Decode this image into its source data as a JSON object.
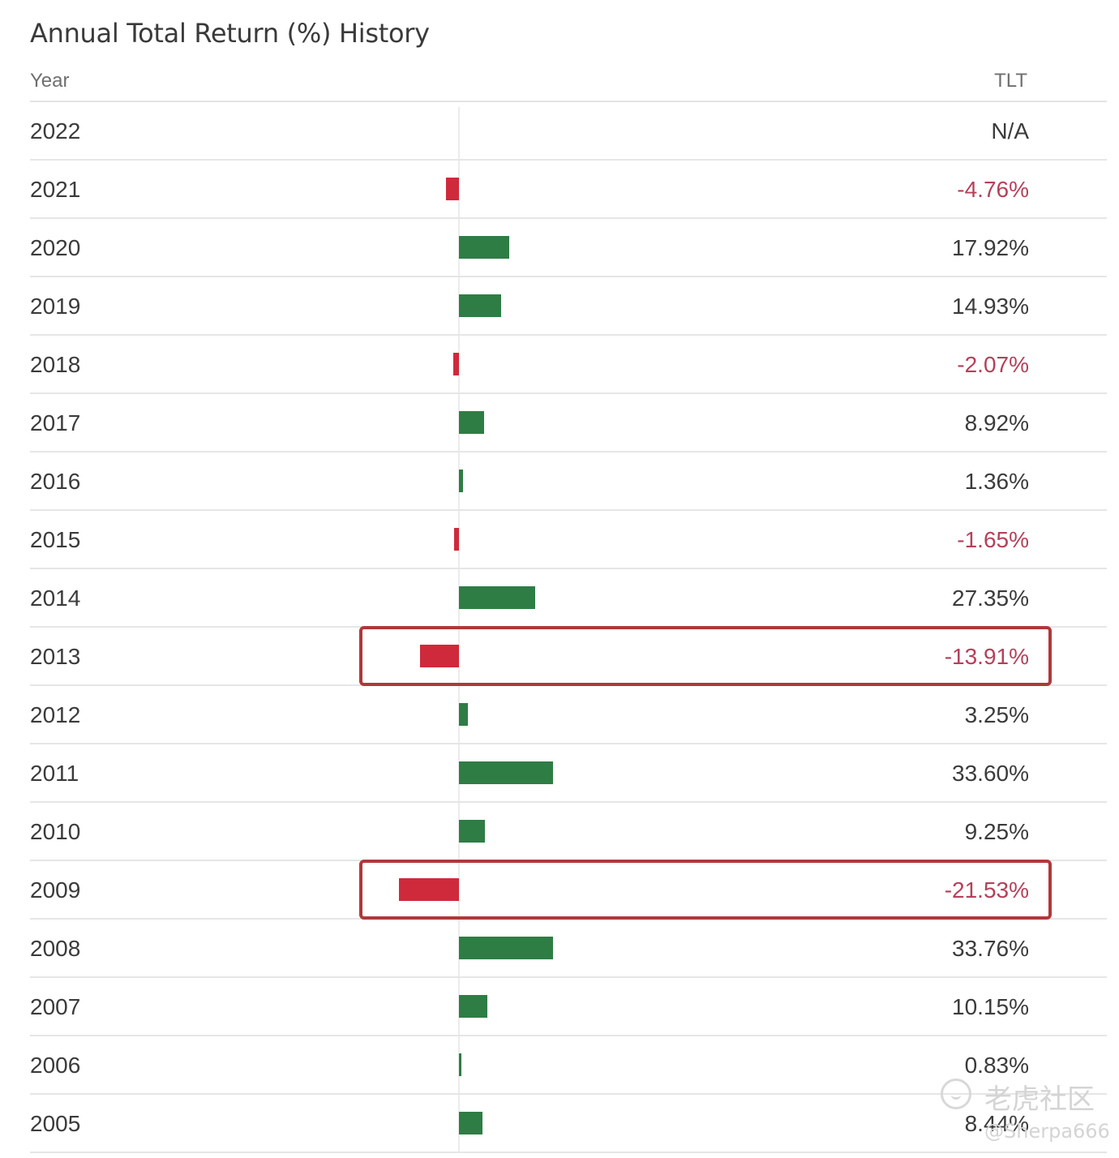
{
  "header": {
    "title": "Annual Total Return (%) History",
    "col_year": "Year",
    "col_ticker": "TLT"
  },
  "watermark": {
    "brand": "老虎社区",
    "user": "@Sherpa666"
  },
  "colors": {
    "positive": "#2e7d45",
    "negative": "#cf2a3b",
    "highlight": "#b0383a"
  },
  "chart_data": {
    "type": "bar",
    "orientation": "horizontal",
    "categories": [
      "2022",
      "2021",
      "2020",
      "2019",
      "2018",
      "2017",
      "2016",
      "2015",
      "2014",
      "2013",
      "2012",
      "2011",
      "2010",
      "2009",
      "2008",
      "2007",
      "2006",
      "2005"
    ],
    "values": [
      null,
      -4.76,
      17.92,
      14.93,
      -2.07,
      8.92,
      1.36,
      -1.65,
      27.35,
      -13.91,
      3.25,
      33.6,
      9.25,
      -21.53,
      33.76,
      10.15,
      0.83,
      8.44
    ],
    "labels": [
      "N/A",
      "-4.76%",
      "17.92%",
      "14.93%",
      "-2.07%",
      "8.92%",
      "1.36%",
      "-1.65%",
      "27.35%",
      "-13.91%",
      "3.25%",
      "33.60%",
      "9.25%",
      "-21.53%",
      "33.76%",
      "10.15%",
      "0.83%",
      "8.44%"
    ],
    "highlighted": [
      "2013",
      "2009"
    ],
    "title": "Annual Total Return (%) History",
    "xlabel": "",
    "ylabel": ""
  }
}
